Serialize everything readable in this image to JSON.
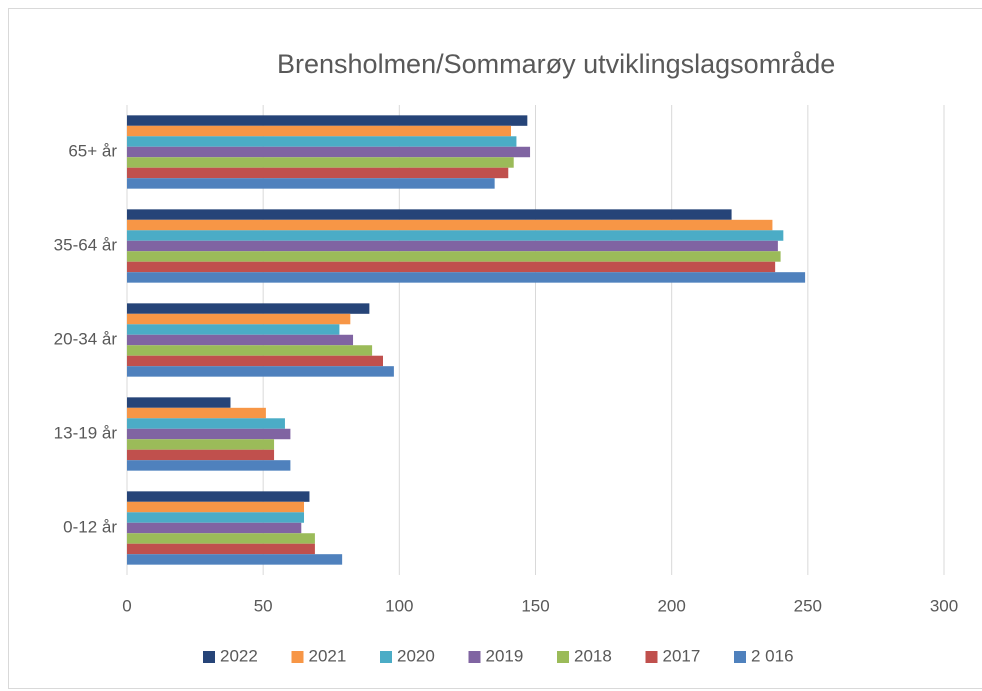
{
  "chart_data": {
    "type": "hbar",
    "title": "Brensholmen/Sommarøy utviklingslagsområde",
    "categories": [
      "65+ år",
      "35-64 år",
      "20-34 år",
      "13-19 år",
      "0-12 år"
    ],
    "series": [
      {
        "name": "2022",
        "color": "#264478",
        "values": [
          147,
          222,
          89,
          38,
          67
        ]
      },
      {
        "name": "2021",
        "color": "#f79646",
        "values": [
          141,
          237,
          82,
          51,
          65
        ]
      },
      {
        "name": "2020",
        "color": "#4bacc6",
        "values": [
          143,
          241,
          78,
          58,
          65
        ]
      },
      {
        "name": "2019",
        "color": "#8064a2",
        "values": [
          148,
          239,
          83,
          60,
          64
        ]
      },
      {
        "name": "2018",
        "color": "#9bbb59",
        "values": [
          142,
          240,
          90,
          54,
          69
        ]
      },
      {
        "name": "2017",
        "color": "#c0504d",
        "values": [
          140,
          238,
          94,
          54,
          69
        ]
      },
      {
        "name": "2 016",
        "color": "#4f81bd",
        "values": [
          135,
          249,
          98,
          60,
          79
        ]
      }
    ],
    "xlim": [
      0,
      300
    ],
    "xticks": [
      0,
      50,
      100,
      150,
      200,
      250,
      300
    ],
    "grid": true,
    "legend": "bottom"
  }
}
